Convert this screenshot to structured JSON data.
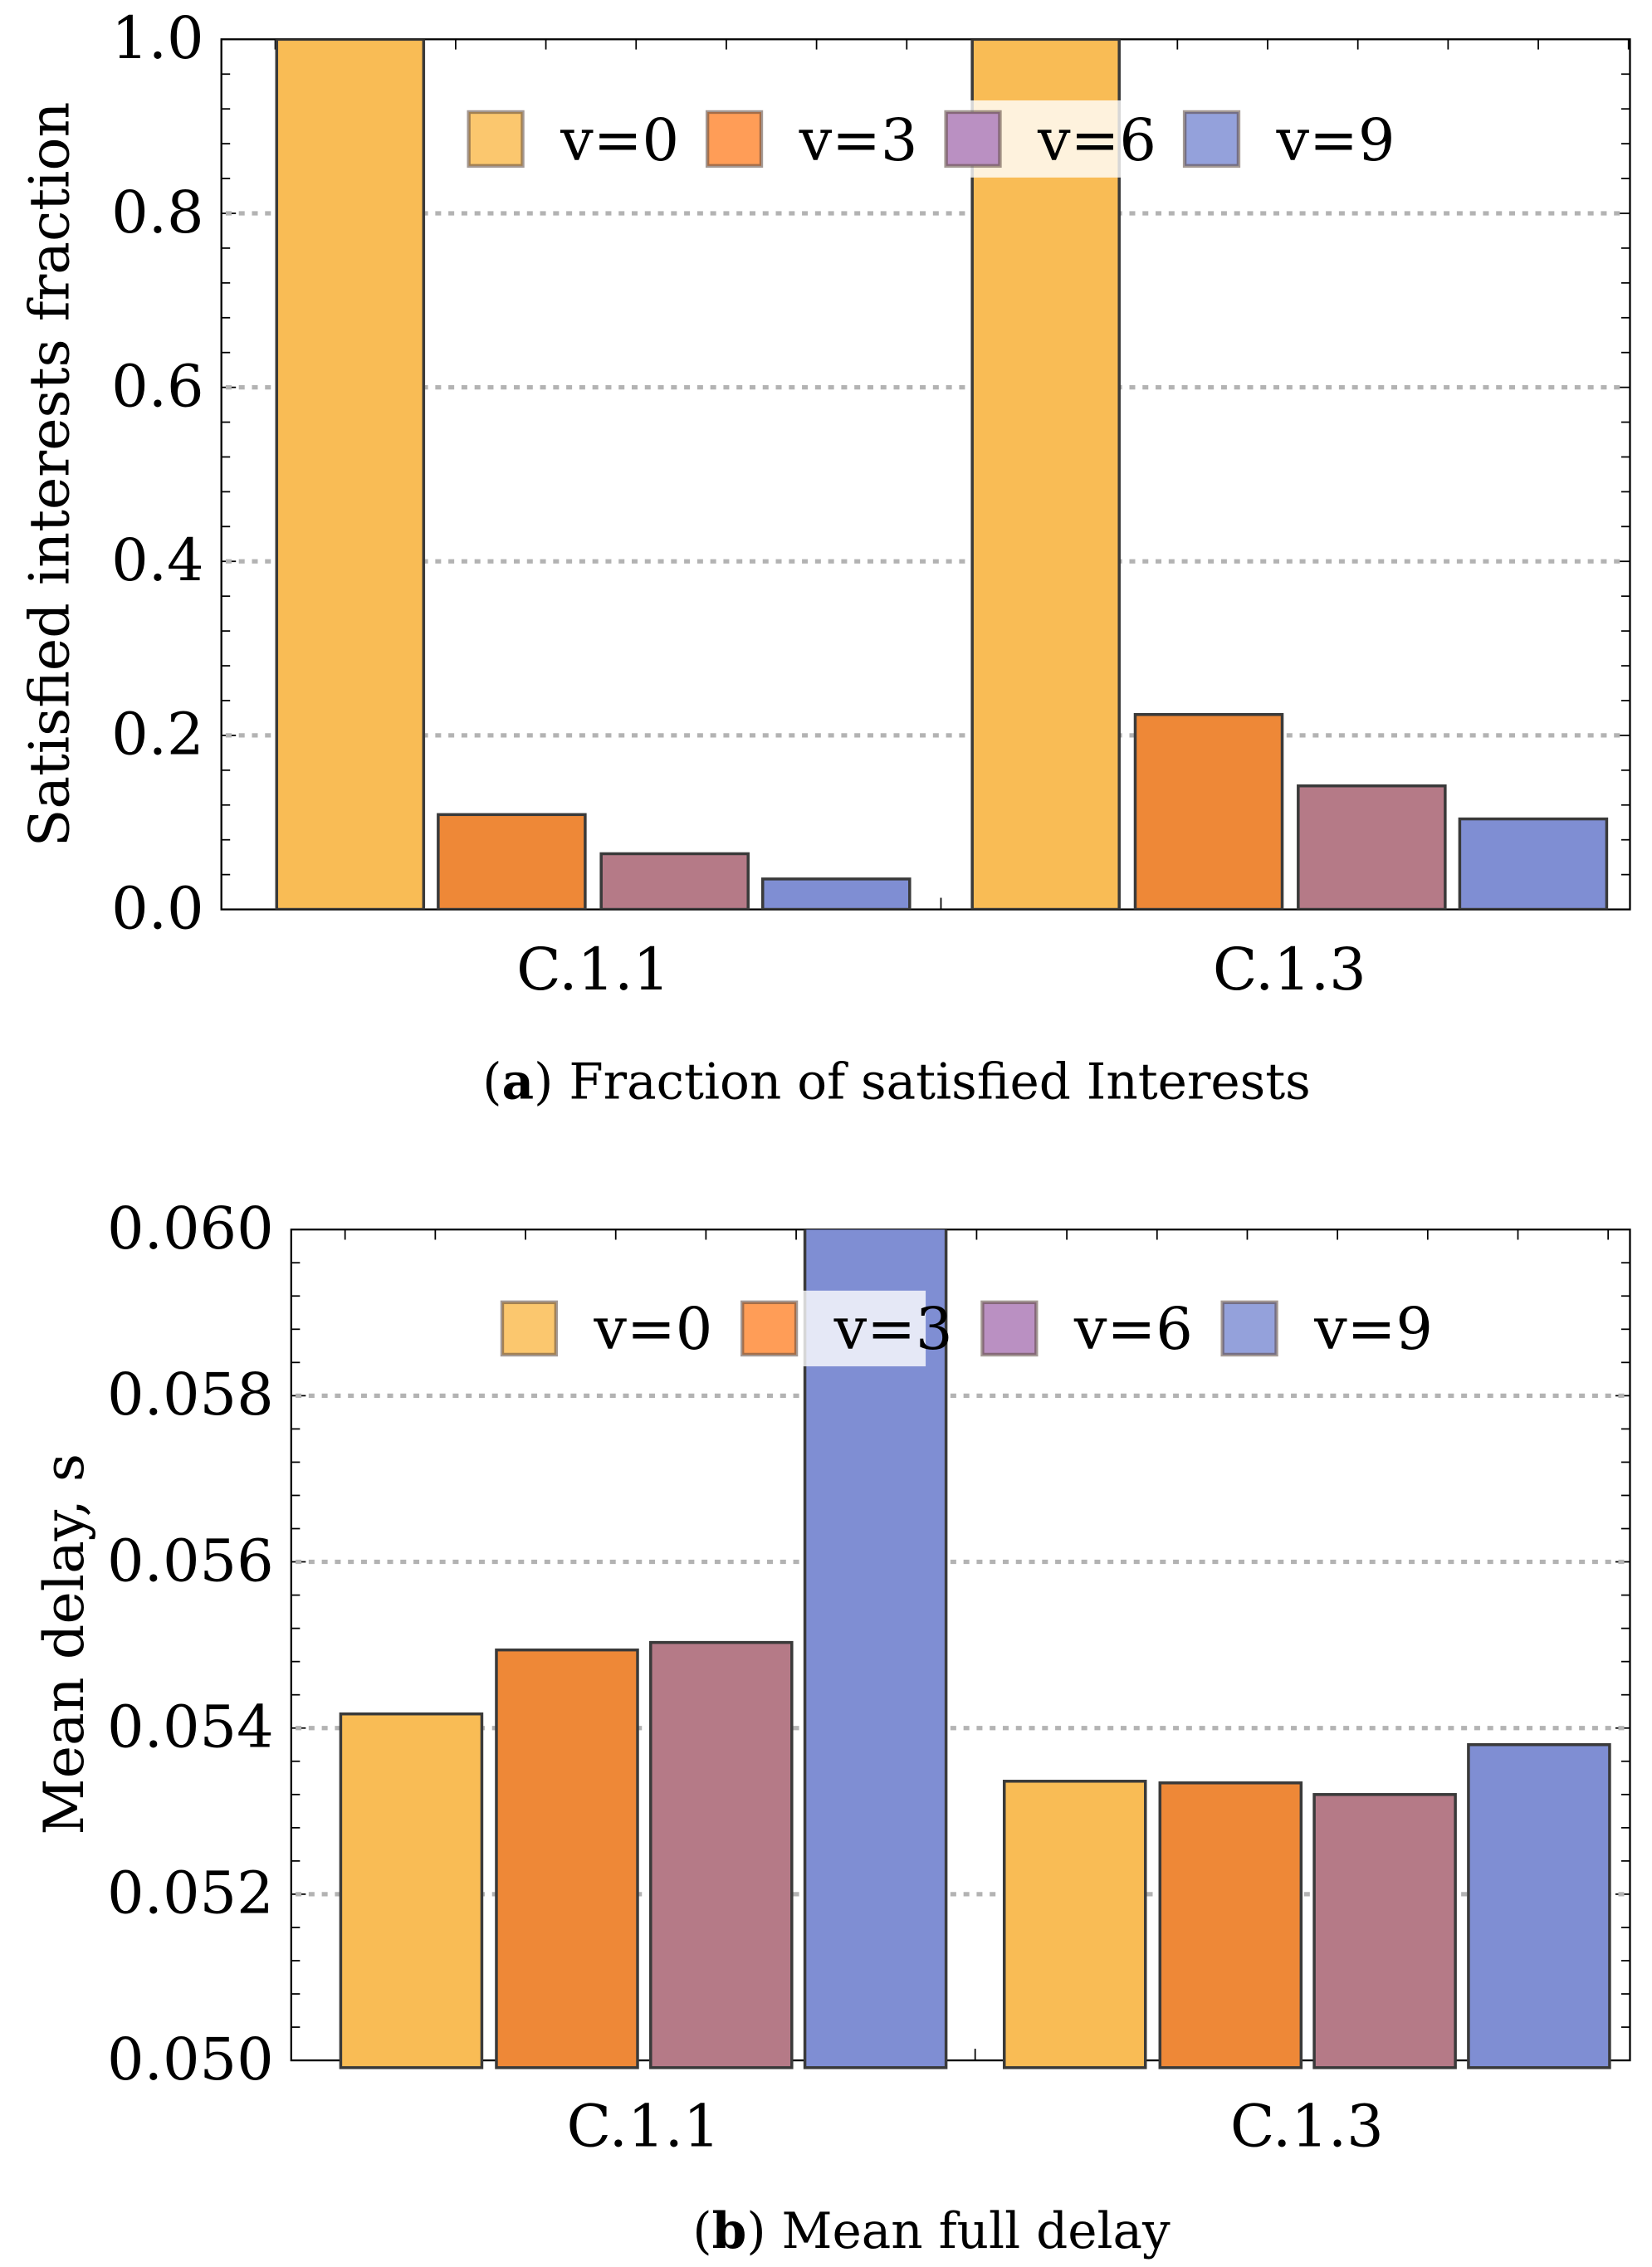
{
  "series_names": [
    "v=0",
    "v=3",
    "v=6",
    "v=9"
  ],
  "colors": {
    "bar": [
      "#F9BC55",
      "#EE8837",
      "#B57A87",
      "#7F8ED3"
    ],
    "legend": [
      "#FBC76E",
      "#FF9D57",
      "#BA90C2",
      "#94A1DB"
    ],
    "grid": "#b3b3b3"
  },
  "chart_data": [
    {
      "type": "bar",
      "caption_letter": "a",
      "caption_text": " Fraction of satisfied Interests",
      "ylabel": "Satisfied interests fraction",
      "xlabel": "",
      "categories": [
        "C.1.1",
        "C.1.3"
      ],
      "ylim": [
        0,
        1.0
      ],
      "yticks": [
        "0.0",
        "0.2",
        "0.4",
        "0.6",
        "0.8",
        "1.0"
      ],
      "ytick_values": [
        0,
        0.2,
        0.4,
        0.6,
        0.8,
        1.0
      ],
      "grid": "dotted horizontal",
      "legend": "top",
      "series": [
        {
          "name": "v=0",
          "values": [
            1.0,
            1.0
          ]
        },
        {
          "name": "v=3",
          "values": [
            0.109,
            0.224
          ]
        },
        {
          "name": "v=6",
          "values": [
            0.064,
            0.142
          ]
        },
        {
          "name": "v=9",
          "values": [
            0.035,
            0.104
          ]
        }
      ]
    },
    {
      "type": "bar",
      "caption_letter": "b",
      "caption_text": " Mean full delay",
      "ylabel": "Mean delay, s",
      "xlabel": "",
      "categories": [
        "C.1.1",
        "C.1.3"
      ],
      "ylim": [
        0.05,
        0.06
      ],
      "yticks": [
        "0.050",
        "0.052",
        "0.054",
        "0.056",
        "0.058",
        "0.060"
      ],
      "ytick_values": [
        0.05,
        0.052,
        0.054,
        0.056,
        0.058,
        0.06
      ],
      "grid": "dotted horizontal",
      "legend": "top",
      "series": [
        {
          "name": "v=0",
          "values": [
            0.05417,
            0.05336
          ]
        },
        {
          "name": "v=3",
          "values": [
            0.05494,
            0.05334
          ]
        },
        {
          "name": "v=6",
          "values": [
            0.05503,
            0.0532
          ]
        },
        {
          "name": "v=9",
          "values": [
            0.0605,
            0.0538
          ]
        }
      ]
    }
  ]
}
